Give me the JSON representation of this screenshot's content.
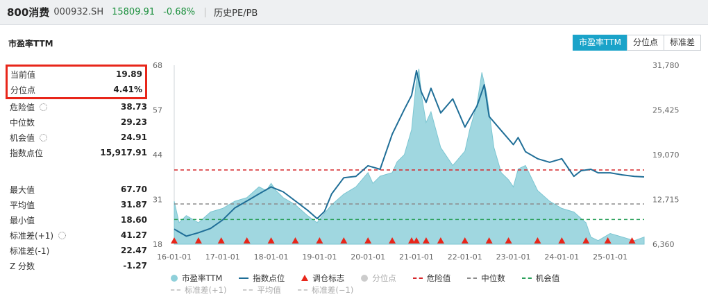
{
  "header": {
    "name": "800消费",
    "code": "000932.SH",
    "price": "15809.91",
    "change": "-0.68%",
    "history_link": "历史PE/PB"
  },
  "section_title": "市盈率TTM",
  "tabs": [
    {
      "label": "市盈率TTM",
      "active": true
    },
    {
      "label": "分位点",
      "active": false
    },
    {
      "label": "标准差",
      "active": false
    }
  ],
  "stats": {
    "current": {
      "label": "当前值",
      "value": "19.89"
    },
    "percentile": {
      "label": "分位点",
      "value": "4.41%"
    },
    "danger": {
      "label": "危险值",
      "value": "38.73"
    },
    "median": {
      "label": "中位数",
      "value": "29.23"
    },
    "opportunity": {
      "label": "机会值",
      "value": "24.91"
    },
    "index_point": {
      "label": "指数点位",
      "value": "15,917.91"
    },
    "max": {
      "label": "最大值",
      "value": "67.70"
    },
    "mean": {
      "label": "平均值",
      "value": "31.87"
    },
    "min": {
      "label": "最小值",
      "value": "18.60"
    },
    "std_plus": {
      "label": "标准差(+1)",
      "value": "41.27"
    },
    "std_minus": {
      "label": "标准差(-1)",
      "value": "22.47"
    },
    "zscore": {
      "label": "Z 分数",
      "value": "-1.27"
    }
  },
  "legend": {
    "pe": "市盈率TTM",
    "index": "指数点位",
    "rebalance": "调仓标志",
    "percentile": "分位点",
    "danger": "危险值",
    "median": "中位数",
    "opportunity": "机会值",
    "std_plus": "标准差(+1)",
    "mean": "平均值",
    "std_minus": "标准差(−1)"
  },
  "colors": {
    "accent": "#1aa3c9",
    "pe_area": "#8fd0da",
    "index_line": "#1f6e97",
    "danger": "#d6262a",
    "median": "#8c8c8c",
    "opportunity": "#2aa05a",
    "rebalance": "#e8261a",
    "up_down_green": "#1a8f3c"
  },
  "chart_data": {
    "type": "area",
    "x_ticks": [
      "16-01-01",
      "17-01-01",
      "18-01-01",
      "19-01-01",
      "20-01-01",
      "21-01-01",
      "22-01-01",
      "23-01-01",
      "24-01-01",
      "25-01-01"
    ],
    "y_left_ticks": [
      "18",
      "31",
      "44",
      "57",
      "68"
    ],
    "y_right_ticks": [
      "6,360",
      "12,715",
      "19,070",
      "25,425",
      "31,780"
    ],
    "ylim_left": [
      18,
      68
    ],
    "ylim_right": [
      6360,
      31780
    ],
    "xlim": [
      2016.0,
      2025.7
    ],
    "reference_lines": {
      "danger": 38.73,
      "median": 29.23,
      "opportunity": 24.91
    },
    "series": [
      {
        "name": "市盈率TTM",
        "axis": "left",
        "x": [
          2016.0,
          2016.1,
          2016.25,
          2016.5,
          2016.75,
          2017.0,
          2017.25,
          2017.5,
          2017.75,
          2017.9,
          2018.0,
          2018.1,
          2018.25,
          2018.5,
          2018.75,
          2018.95,
          2019.0,
          2019.25,
          2019.5,
          2019.75,
          2020.0,
          2020.1,
          2020.25,
          2020.5,
          2020.6,
          2020.75,
          2020.9,
          2021.0,
          2021.05,
          2021.1,
          2021.2,
          2021.3,
          2021.5,
          2021.75,
          2022.0,
          2022.1,
          2022.25,
          2022.35,
          2022.45,
          2022.5,
          2022.6,
          2022.75,
          2022.9,
          2023.0,
          2023.1,
          2023.25,
          2023.5,
          2023.75,
          2024.0,
          2024.25,
          2024.5,
          2024.6,
          2024.75,
          2025.0,
          2025.25,
          2025.5,
          2025.7
        ],
        "y": [
          30,
          24,
          26,
          24,
          27,
          28,
          30,
          31,
          34,
          33,
          35,
          33,
          31,
          29,
          26,
          24,
          25,
          29,
          32,
          34,
          38,
          35,
          37,
          38,
          41,
          43,
          50,
          64,
          67,
          60,
          52,
          55,
          45,
          40,
          44,
          50,
          57,
          66,
          60,
          55,
          45,
          38,
          36,
          34,
          39,
          40,
          33,
          30,
          28,
          27,
          24,
          20,
          19,
          21,
          20,
          19,
          20
        ]
      },
      {
        "name": "指数点位",
        "axis": "right",
        "x": [
          2016.0,
          2016.25,
          2016.5,
          2016.75,
          2017.0,
          2017.25,
          2017.5,
          2017.75,
          2018.0,
          2018.25,
          2018.5,
          2018.75,
          2018.95,
          2019.1,
          2019.25,
          2019.5,
          2019.75,
          2020.0,
          2020.25,
          2020.5,
          2020.75,
          2020.9,
          2021.0,
          2021.1,
          2021.2,
          2021.3,
          2021.5,
          2021.75,
          2022.0,
          2022.25,
          2022.4,
          2022.5,
          2022.75,
          2023.0,
          2023.1,
          2023.25,
          2023.5,
          2023.75,
          2024.0,
          2024.1,
          2024.25,
          2024.4,
          2024.6,
          2024.75,
          2025.0,
          2025.25,
          2025.5,
          2025.7
        ],
        "y": [
          8500,
          7500,
          8000,
          8600,
          9800,
          11500,
          12500,
          13500,
          14500,
          13800,
          12500,
          11200,
          10000,
          11000,
          13500,
          15800,
          16000,
          17500,
          17000,
          22000,
          25500,
          27500,
          31000,
          28000,
          26500,
          28500,
          25000,
          27000,
          23000,
          26000,
          29000,
          24500,
          22500,
          20500,
          21500,
          19500,
          18500,
          18000,
          18500,
          17500,
          16000,
          16800,
          17000,
          16500,
          16500,
          16200,
          16000,
          15917.91
        ]
      }
    ],
    "rebalance_markers": [
      2016.0,
      2016.5,
      2016.97,
      2017.5,
      2018.0,
      2018.5,
      2019.0,
      2019.5,
      2020.0,
      2020.5,
      2020.9,
      2021.0,
      2021.2,
      2021.5,
      2022.0,
      2022.5,
      2022.9,
      2023.5,
      2024.0,
      2024.5,
      2024.95,
      2025.45
    ]
  }
}
